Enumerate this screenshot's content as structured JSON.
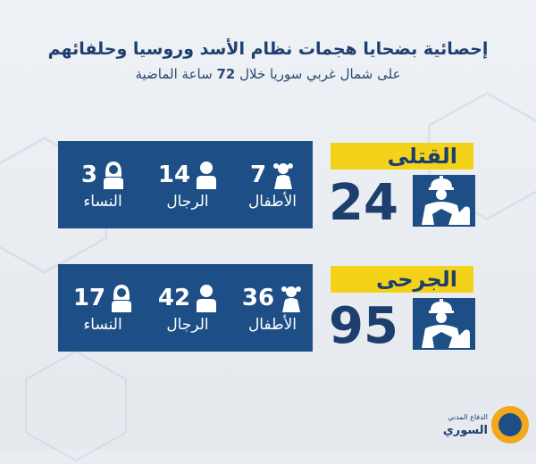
{
  "header": {
    "title": "إحصائية بضحايا هجمات نظام الأسد وروسيا وحلفائهم",
    "subtitle_pre": "على شمال غربي سوريا خلال",
    "subtitle_hours": "72",
    "subtitle_post": "ساعة الماضية"
  },
  "killed": {
    "label": "القتلى",
    "total": "24",
    "children": {
      "count": "7",
      "label": "الأطفال"
    },
    "men": {
      "count": "14",
      "label": "الرجال"
    },
    "women": {
      "count": "3",
      "label": "النساء"
    }
  },
  "injured": {
    "label": "الجرحى",
    "total": "95",
    "children": {
      "count": "36",
      "label": "الأطفال"
    },
    "men": {
      "count": "42",
      "label": "الرجال"
    },
    "women": {
      "count": "17",
      "label": "النساء"
    }
  },
  "logo": {
    "line1": "الدفاع المدني",
    "line2": "السوري"
  },
  "colors": {
    "panel": "#1d4f86",
    "accent": "#f5d21a",
    "text": "#1d3f6e"
  },
  "icons": [
    "child-icon",
    "man-icon",
    "woman-icon",
    "rescuer-icon",
    "white-helmets-logo"
  ]
}
